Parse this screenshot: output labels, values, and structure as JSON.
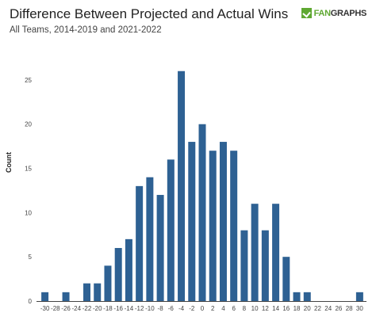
{
  "header": {
    "title": "Difference Between Projected and Actual Wins",
    "subtitle": "All Teams, 2014-2019 and 2021-2022",
    "logo_text_fan": "FAN",
    "logo_text_graphs": "GRAPHS"
  },
  "chart_data": {
    "type": "bar",
    "title": "Difference Between Projected and Actual Wins",
    "subtitle": "All Teams, 2014-2019 and 2021-2022",
    "xlabel": "",
    "ylabel": "Count",
    "categories": [
      -30,
      -28,
      -26,
      -24,
      -22,
      -20,
      -18,
      -16,
      -14,
      -12,
      -10,
      -8,
      -6,
      -4,
      -2,
      0,
      2,
      4,
      6,
      8,
      10,
      12,
      14,
      16,
      18,
      20,
      22,
      24,
      26,
      28,
      30
    ],
    "values": [
      1,
      0,
      1,
      0,
      2,
      2,
      4,
      6,
      7,
      13,
      14,
      12,
      16,
      26,
      18,
      20,
      17,
      18,
      17,
      8,
      11,
      8,
      11,
      5,
      1,
      1,
      0,
      0,
      0,
      0,
      1
    ],
    "yticks": [
      0,
      5,
      10,
      15,
      20,
      25
    ],
    "ylim": [
      0,
      27.5
    ],
    "bar_color": "#2e6193",
    "grid": false,
    "legend": "none"
  }
}
